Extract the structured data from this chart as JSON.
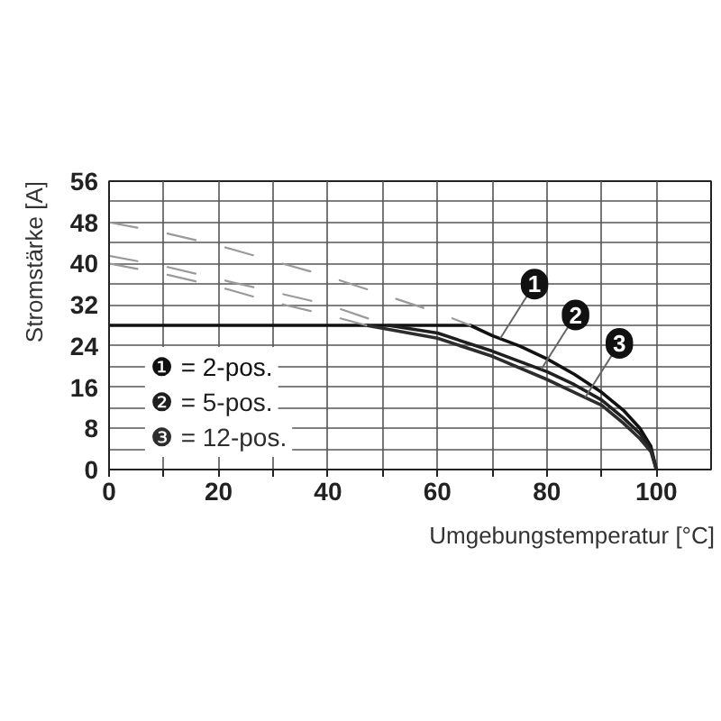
{
  "chart_data": {
    "type": "line",
    "xlabel": "Umgebungstemperatur [°C]",
    "ylabel": "Stromstärke [A]",
    "xlim": [
      0,
      110
    ],
    "ylim": [
      0,
      56
    ],
    "xticks": [
      0,
      {
        "value": 10,
        "label": null
      },
      20,
      {
        "value": 30,
        "label": null
      },
      40,
      {
        "value": 50,
        "label": null
      },
      60,
      {
        "value": 70,
        "label": null
      },
      80,
      {
        "value": 90,
        "label": null
      },
      100
    ],
    "yticks": [
      0,
      {
        "value": 4,
        "label": null
      },
      8,
      {
        "value": 12,
        "label": null
      },
      16,
      {
        "value": 20,
        "label": null
      },
      24,
      {
        "value": 28,
        "label": null
      },
      32,
      {
        "value": 36,
        "label": null
      },
      40,
      {
        "value": 44,
        "label": null
      },
      48,
      {
        "value": 52,
        "label": null
      },
      56
    ],
    "grid": true,
    "legend": "bottom left",
    "series": [
      {
        "name": "❶ = 2-pos.",
        "color": "#111111",
        "x": [
          0,
          66,
          70,
          75,
          80,
          85,
          90,
          94,
          97,
          99,
          100
        ],
        "values": [
          28,
          28,
          26,
          24,
          21.5,
          18.5,
          15,
          11.5,
          8,
          4.5,
          0
        ]
      },
      {
        "name": "❷ = 5-pos.",
        "color": "#1f1f1f",
        "x": [
          51,
          60,
          70,
          80,
          85,
          90,
          94,
          97,
          99,
          100
        ],
        "values": [
          28,
          26.5,
          23,
          19,
          16.5,
          13.5,
          10,
          7,
          4,
          0
        ]
      },
      {
        "name": "❸ = 12-pos.",
        "color": "#2d2d2d",
        "x": [
          47,
          60,
          70,
          80,
          85,
          90,
          94,
          97,
          99,
          100
        ],
        "values": [
          28,
          25.5,
          22,
          17.5,
          15,
          12.5,
          9,
          6,
          3.5,
          0
        ]
      },
      {
        "color": "#9a9a9a",
        "line_style": "dashed",
        "x": [
          0,
          10,
          20,
          30,
          40,
          50,
          60,
          66
        ],
        "values": [
          48,
          46,
          43.5,
          40.5,
          37.5,
          34,
          30.5,
          28
        ]
      },
      {
        "color": "#9a9a9a",
        "line_style": "dashed",
        "x": [
          0,
          10,
          20,
          30,
          40,
          51
        ],
        "values": [
          41.5,
          39.5,
          37,
          34.5,
          32,
          28
        ]
      },
      {
        "color": "#9a9a9a",
        "line_style": "dashed",
        "x": [
          0,
          10,
          20,
          30,
          40,
          47
        ],
        "values": [
          40,
          38,
          35.5,
          32.5,
          30,
          28
        ]
      }
    ],
    "annotations": [
      {
        "text": "1",
        "x": 71.5,
        "y": 25.5
      },
      {
        "text": "2",
        "x": 79,
        "y": 19.5
      },
      {
        "text": "3",
        "x": 87,
        "y": 14
      }
    ]
  }
}
